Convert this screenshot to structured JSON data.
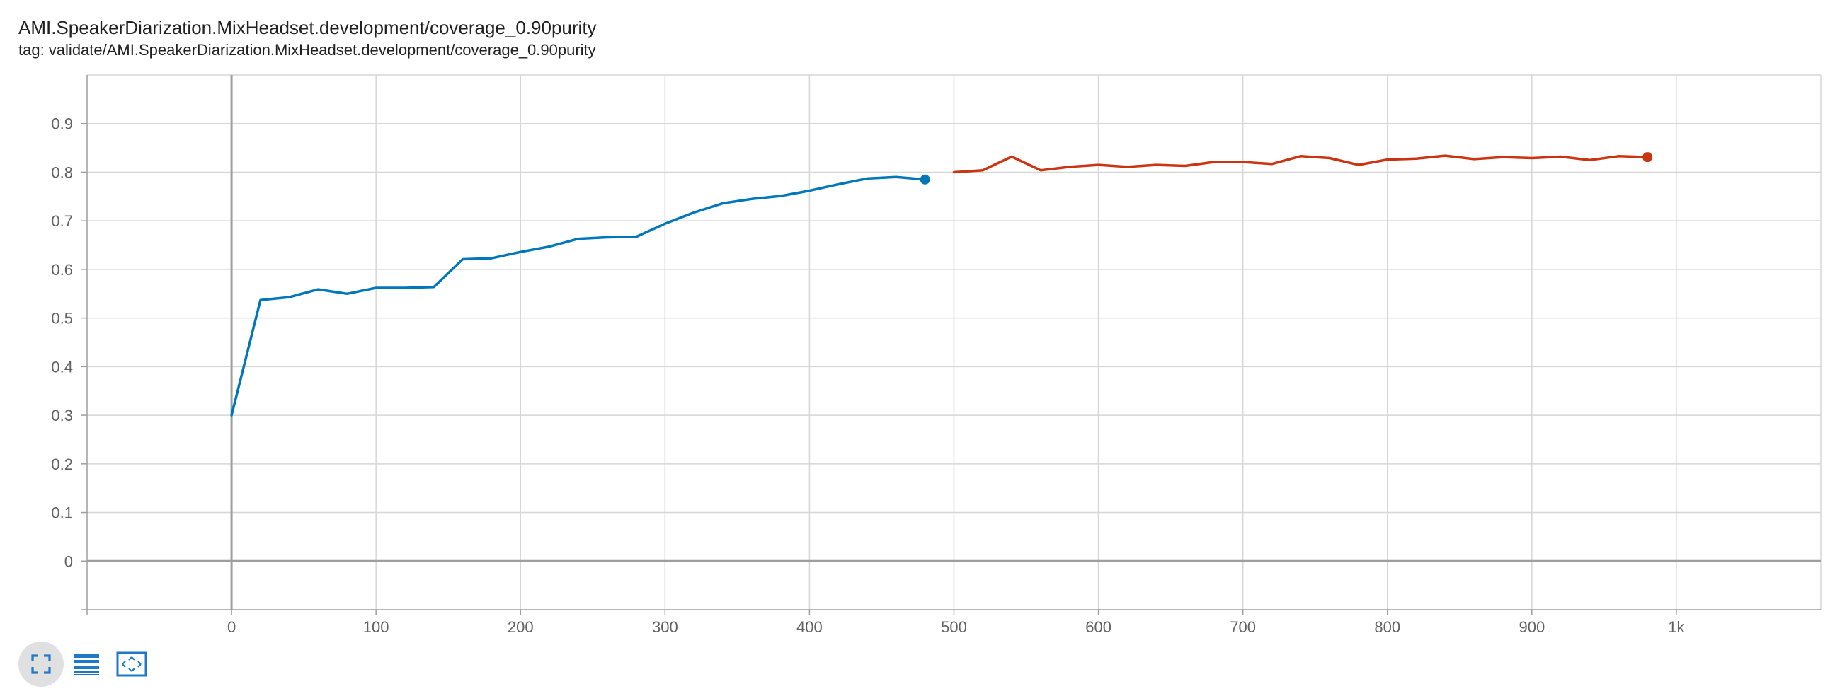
{
  "header": {
    "title": "AMI.SpeakerDiarization.MixHeadset.development/coverage_0.90purity",
    "tag": "tag: validate/AMI.SpeakerDiarization.MixHeadset.development/coverage_0.90purity"
  },
  "toolbar": [
    {
      "icon": "fit-to-screen-icon",
      "active": true
    },
    {
      "icon": "toggle-log-list-icon",
      "active": false
    },
    {
      "icon": "fit-domain-icon",
      "active": false
    }
  ],
  "chart_data": {
    "type": "line",
    "title": "AMI.SpeakerDiarization.MixHeadset.development/coverage_0.90purity",
    "xlabel": "",
    "ylabel": "",
    "xlim": [
      -100,
      1100
    ],
    "ylim": [
      -0.1,
      1.0
    ],
    "x_ticks": [
      0,
      100,
      200,
      300,
      400,
      500,
      600,
      700,
      800,
      900,
      1000
    ],
    "x_tick_labels": [
      "0",
      "100",
      "200",
      "300",
      "400",
      "500",
      "600",
      "700",
      "800",
      "900",
      "1k"
    ],
    "y_ticks": [
      0,
      0.1,
      0.2,
      0.3,
      0.4,
      0.5,
      0.6,
      0.7,
      0.8,
      0.9
    ],
    "y_tick_labels": [
      "0",
      "0.1",
      "0.2",
      "0.3",
      "0.4",
      "0.5",
      "0.6",
      "0.7",
      "0.8",
      "0.9"
    ],
    "grid": true,
    "series": [
      {
        "color": "#0077bb",
        "x": [
          0,
          20,
          40,
          60,
          80,
          100,
          120,
          140,
          160,
          180,
          200,
          220,
          240,
          260,
          280,
          300,
          320,
          340,
          360,
          380,
          400,
          420,
          440,
          460,
          480
        ],
        "y": [
          0.3,
          0.537,
          0.543,
          0.559,
          0.55,
          0.562,
          0.562,
          0.564,
          0.621,
          0.623,
          0.636,
          0.647,
          0.663,
          0.666,
          0.667,
          0.694,
          0.717,
          0.736,
          0.745,
          0.751,
          0.762,
          0.775,
          0.787,
          0.79,
          0.785
        ]
      },
      {
        "color": "#cc3311",
        "x": [
          500,
          520,
          540,
          560,
          580,
          600,
          620,
          640,
          660,
          680,
          700,
          720,
          740,
          760,
          780,
          800,
          820,
          840,
          860,
          880,
          900,
          920,
          940,
          960,
          980
        ],
        "y": [
          0.8,
          0.804,
          0.832,
          0.804,
          0.811,
          0.815,
          0.811,
          0.815,
          0.813,
          0.821,
          0.821,
          0.817,
          0.833,
          0.829,
          0.815,
          0.826,
          0.828,
          0.834,
          0.827,
          0.831,
          0.829,
          0.832,
          0.825,
          0.833,
          0.831
        ]
      }
    ]
  }
}
